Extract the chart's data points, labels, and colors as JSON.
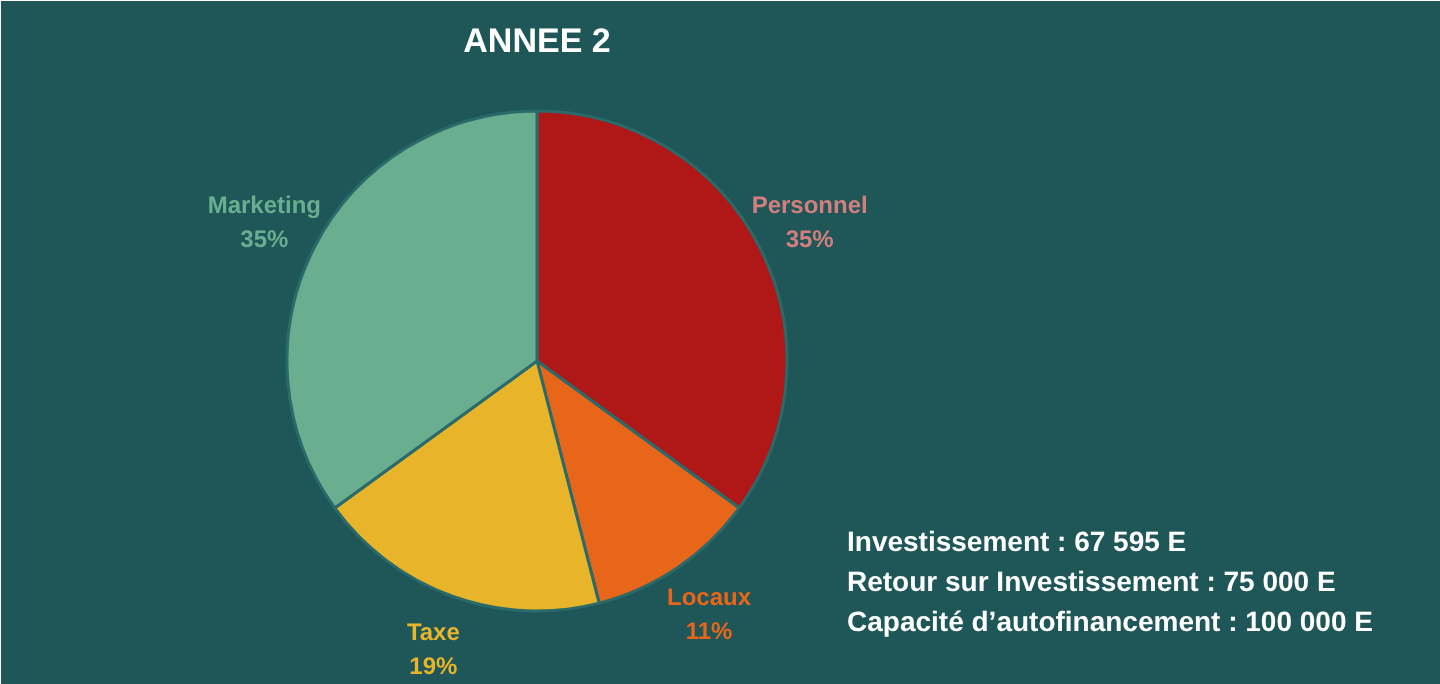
{
  "chart_data": {
    "type": "pie",
    "title": "ANNEE 2",
    "categories": [
      "Personnel",
      "Locaux",
      "Taxe",
      "Marketing"
    ],
    "values": [
      35,
      11,
      19,
      35
    ],
    "value_labels": [
      "35%",
      "11%",
      "19%",
      "35%"
    ],
    "colors": [
      "#b01818",
      "#e8661a",
      "#e8b42a",
      "#6aae90"
    ],
    "annotations": [
      "Investissement : 67 595 E",
      "Retour sur Investissement  : 75 000 E",
      "Capacité d’autofinancement : 100 000 E"
    ]
  }
}
